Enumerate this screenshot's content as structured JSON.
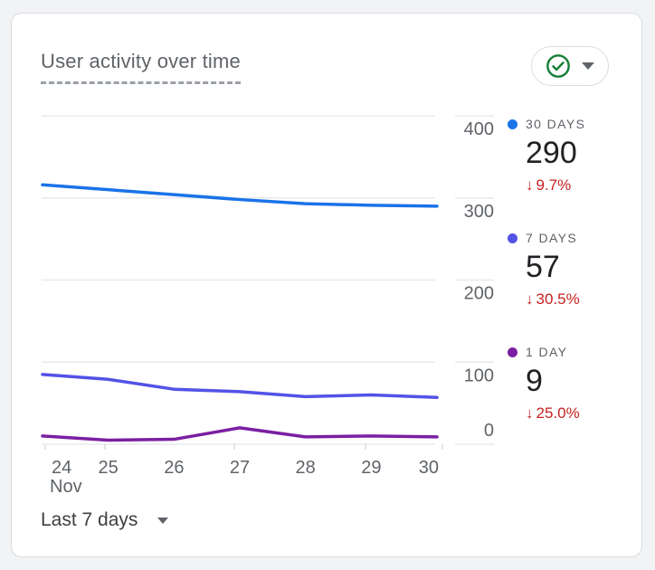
{
  "card": {
    "title": "User activity over time",
    "status": {
      "icon": "check-circle",
      "color": "#188038"
    },
    "time_range": {
      "label": "Last 7 days"
    }
  },
  "ui": {
    "down_arrow": "↓"
  },
  "chart_data": {
    "type": "line",
    "title": "User activity over time",
    "categories": [
      "24",
      "25",
      "26",
      "27",
      "28",
      "29",
      "30"
    ],
    "x_axis_month": "Nov",
    "xlabel": "",
    "ylabel": "",
    "ylim": [
      0,
      400
    ],
    "yticks": [
      0,
      100,
      200,
      300,
      400
    ],
    "grid": true,
    "grid_color": "#e8eaed",
    "tick_color": "#dadce0",
    "axis_label_color": "#5f6368",
    "legend_position": "right",
    "series": [
      {
        "name": "30 DAYS",
        "color": "#1a73e8",
        "values": [
          316,
          310,
          304,
          298,
          293,
          291,
          290
        ],
        "current_value": "290",
        "delta": "9.7%",
        "delta_direction": "down",
        "delta_color": "#c5221f"
      },
      {
        "name": "7 DAYS",
        "color": "#5352e6",
        "values": [
          85,
          79,
          67,
          64,
          58,
          60,
          57
        ],
        "current_value": "57",
        "delta": "30.5%",
        "delta_direction": "down",
        "delta_color": "#c5221f"
      },
      {
        "name": "1 DAY",
        "color": "#7b1fa2",
        "values": [
          10,
          5,
          6,
          20,
          9,
          10,
          9
        ],
        "current_value": "9",
        "delta": "25.0%",
        "delta_direction": "down",
        "delta_color": "#c5221f"
      }
    ]
  }
}
